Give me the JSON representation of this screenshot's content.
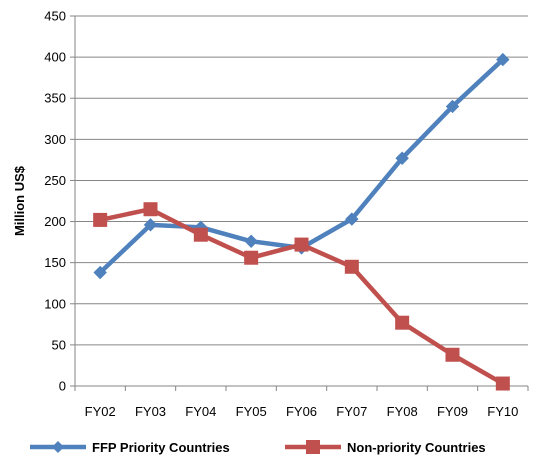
{
  "chart_data": {
    "type": "line",
    "title": "",
    "xlabel": "",
    "ylabel": "Million US$",
    "categories": [
      "FY02",
      "FY03",
      "FY04",
      "FY05",
      "FY06",
      "FY07",
      "FY08",
      "FY09",
      "FY10"
    ],
    "ylim": [
      0,
      450
    ],
    "yticks": [
      0,
      50,
      100,
      150,
      200,
      250,
      300,
      350,
      400,
      450
    ],
    "grid": true,
    "legend_position": "bottom",
    "series": [
      {
        "name": "FFP Priority Countries",
        "color": "#4F81BD",
        "marker": "diamond",
        "values": [
          138,
          196,
          193,
          176,
          168,
          203,
          277,
          340,
          397
        ]
      },
      {
        "name": "Non-priority Countries",
        "color": "#C0504D",
        "marker": "square",
        "values": [
          202,
          215,
          184,
          156,
          172,
          145,
          77,
          38,
          3
        ]
      }
    ]
  }
}
